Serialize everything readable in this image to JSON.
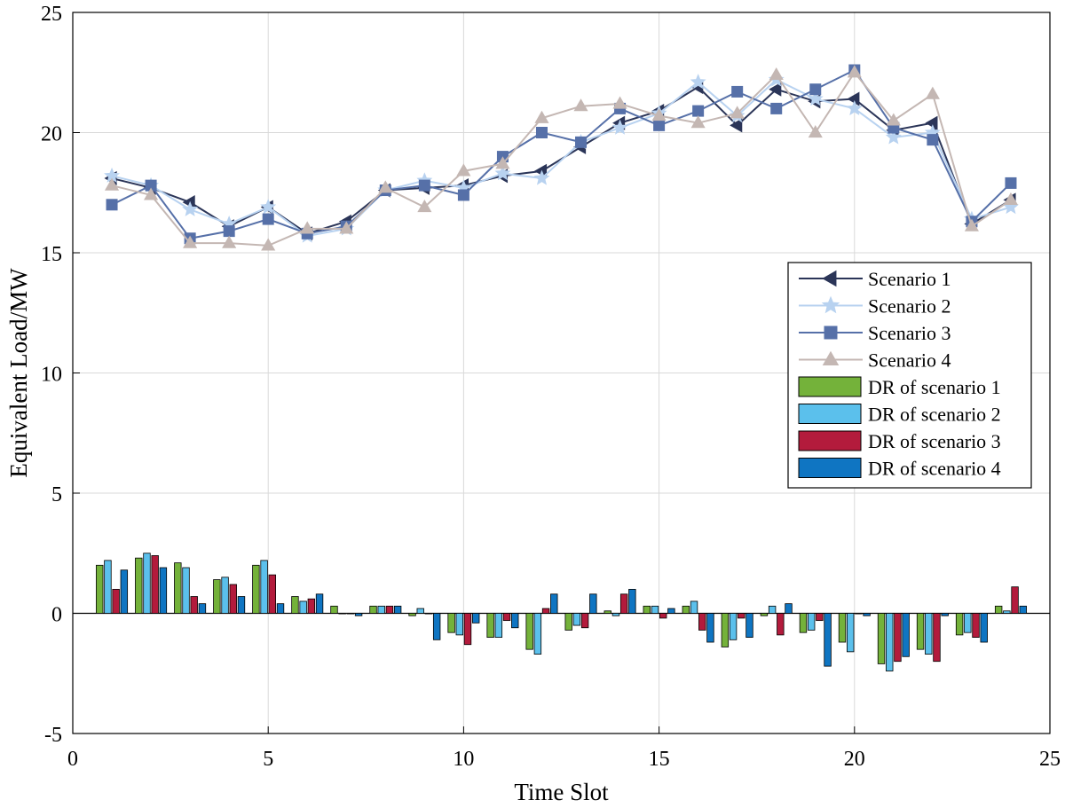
{
  "chart_data": {
    "type": "line+bar",
    "title": "",
    "xlabel": "Time Slot",
    "ylabel": "Equivalent Load/MW",
    "xlim": [
      0,
      25
    ],
    "ylim": [
      -5,
      25
    ],
    "xticks": [
      "0",
      "5",
      "10",
      "15",
      "20",
      "25"
    ],
    "yticks": [
      "-5",
      "0",
      "5",
      "10",
      "15",
      "20",
      "25"
    ],
    "grid": true,
    "legend_position": "right-middle",
    "x": [
      1,
      2,
      3,
      4,
      5,
      6,
      7,
      8,
      9,
      10,
      11,
      12,
      13,
      14,
      15,
      16,
      17,
      18,
      19,
      20,
      21,
      22,
      23,
      24
    ],
    "line_series": [
      {
        "name": "Scenario 1",
        "color": "#2b3558",
        "marker": "triangle-left",
        "values": [
          18.1,
          17.7,
          17.1,
          16.1,
          16.9,
          15.8,
          16.3,
          17.6,
          17.7,
          17.8,
          18.2,
          18.4,
          19.4,
          20.4,
          20.9,
          21.9,
          20.3,
          21.8,
          21.3,
          21.4,
          20.1,
          20.4,
          16.2,
          17.2
        ]
      },
      {
        "name": "Scenario 2",
        "color": "#b8d2f0",
        "marker": "star",
        "values": [
          18.2,
          17.8,
          16.8,
          16.2,
          16.9,
          15.7,
          16.0,
          17.6,
          18.0,
          17.7,
          18.3,
          18.1,
          19.6,
          20.2,
          20.8,
          22.1,
          20.7,
          22.2,
          21.4,
          21.0,
          19.8,
          20.0,
          16.4,
          16.9
        ]
      },
      {
        "name": "Scenario 3",
        "color": "#5670a8",
        "marker": "square",
        "values": [
          17.0,
          17.8,
          15.6,
          15.9,
          16.4,
          15.8,
          16.1,
          17.6,
          17.8,
          17.4,
          19.0,
          20.0,
          19.6,
          21.0,
          20.3,
          20.9,
          21.7,
          21.0,
          21.8,
          22.6,
          20.2,
          19.7,
          16.3,
          17.9
        ]
      },
      {
        "name": "Scenario 4",
        "color": "#c4b7b3",
        "marker": "triangle-up",
        "values": [
          17.8,
          17.4,
          15.4,
          15.4,
          15.3,
          16.0,
          16.0,
          17.7,
          16.9,
          18.4,
          18.7,
          20.6,
          21.1,
          21.2,
          20.7,
          20.4,
          20.8,
          22.4,
          20.0,
          22.5,
          20.5,
          21.6,
          16.1,
          17.2
        ]
      }
    ],
    "bar_series": [
      {
        "name": "DR of scenario 1",
        "color": "#74b23a",
        "values": [
          2.0,
          2.3,
          2.1,
          1.4,
          2.0,
          0.7,
          0.3,
          0.3,
          -0.1,
          -0.8,
          -1.0,
          -1.5,
          -0.7,
          0.1,
          0.3,
          0.3,
          -1.4,
          -0.1,
          -0.8,
          -1.2,
          -2.1,
          -1.5,
          -0.9,
          0.3
        ]
      },
      {
        "name": "DR of scenario 2",
        "color": "#5bc0ec",
        "values": [
          2.2,
          2.5,
          1.9,
          1.5,
          2.2,
          0.5,
          0.0,
          0.3,
          0.2,
          -0.9,
          -1.0,
          -1.7,
          -0.5,
          -0.1,
          0.3,
          0.5,
          -1.1,
          0.3,
          -0.7,
          -1.6,
          -2.4,
          -1.7,
          -0.8,
          0.1
        ]
      },
      {
        "name": "DR of scenario 3",
        "color": "#b31b3c",
        "values": [
          1.0,
          2.4,
          0.7,
          1.2,
          1.6,
          0.6,
          0.0,
          0.3,
          0.0,
          -1.3,
          -0.3,
          0.2,
          -0.6,
          0.8,
          -0.2,
          -0.7,
          -0.2,
          -0.9,
          -0.3,
          0.0,
          -2.0,
          -2.0,
          -1.0,
          1.1
        ]
      },
      {
        "name": "DR of scenario 4",
        "color": "#0f75c2",
        "values": [
          1.8,
          1.9,
          0.4,
          0.7,
          0.4,
          0.8,
          -0.1,
          0.3,
          -1.1,
          -0.4,
          -0.6,
          0.8,
          0.8,
          1.0,
          0.2,
          -1.2,
          -1.0,
          0.4,
          -2.2,
          -0.1,
          -1.8,
          -0.1,
          -1.2,
          0.3
        ]
      }
    ]
  }
}
